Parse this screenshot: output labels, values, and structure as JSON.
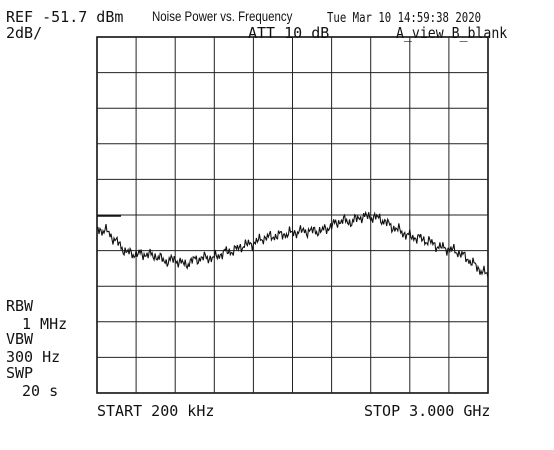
{
  "header": {
    "ref": "REF -51.7 dBm",
    "scale": "2dB/",
    "title": "Noise Power vs. Frequency",
    "timestamp": "Tue Mar 10 14:59:38 2020",
    "att": "ATT 10 dB",
    "view": "A_view B_blank"
  },
  "settings": {
    "rbw_label": "RBW",
    "rbw_value": "1 MHz",
    "vbw_label": "VBW",
    "vbw_value": "300 Hz",
    "swp_label": "SWP",
    "swp_value": "20 s"
  },
  "footer": {
    "start": "START 200 kHz",
    "stop": "STOP 3.000 GHz"
  },
  "chart_data": {
    "type": "line",
    "grid": true,
    "xlim": [
      0.0002,
      3.0
    ],
    "ylim": [
      -71.7,
      -51.7
    ],
    "x_unit": "GHz",
    "y_unit": "dBm",
    "series": [
      {
        "x": [
          0.0002,
          0.075,
          0.15,
          0.225,
          0.3,
          0.375,
          0.45,
          0.525,
          0.6,
          0.675,
          0.75,
          0.825,
          0.9,
          0.975,
          1.05,
          1.125,
          1.2,
          1.275,
          1.35,
          1.425,
          1.5,
          1.575,
          1.65,
          1.725,
          1.8,
          1.875,
          1.95,
          2.025,
          2.1,
          2.175,
          2.25,
          2.325,
          2.4,
          2.475,
          2.55,
          2.625,
          2.7,
          2.775,
          2.85,
          2.925,
          3.0
        ],
        "values": [
          -62.5,
          -62.6,
          -63.2,
          -63.8,
          -63.9,
          -63.9,
          -64.0,
          -64.3,
          -64.2,
          -64.5,
          -64.2,
          -64.1,
          -64.1,
          -63.8,
          -63.7,
          -63.4,
          -63.3,
          -63.0,
          -62.9,
          -62.8,
          -62.7,
          -62.6,
          -62.6,
          -62.6,
          -62.3,
          -62.0,
          -62.1,
          -61.8,
          -61.8,
          -61.9,
          -62.3,
          -62.6,
          -62.9,
          -63.0,
          -63.2,
          -63.5,
          -63.6,
          -63.8,
          -64.2,
          -64.7,
          -65.1
        ]
      }
    ]
  }
}
